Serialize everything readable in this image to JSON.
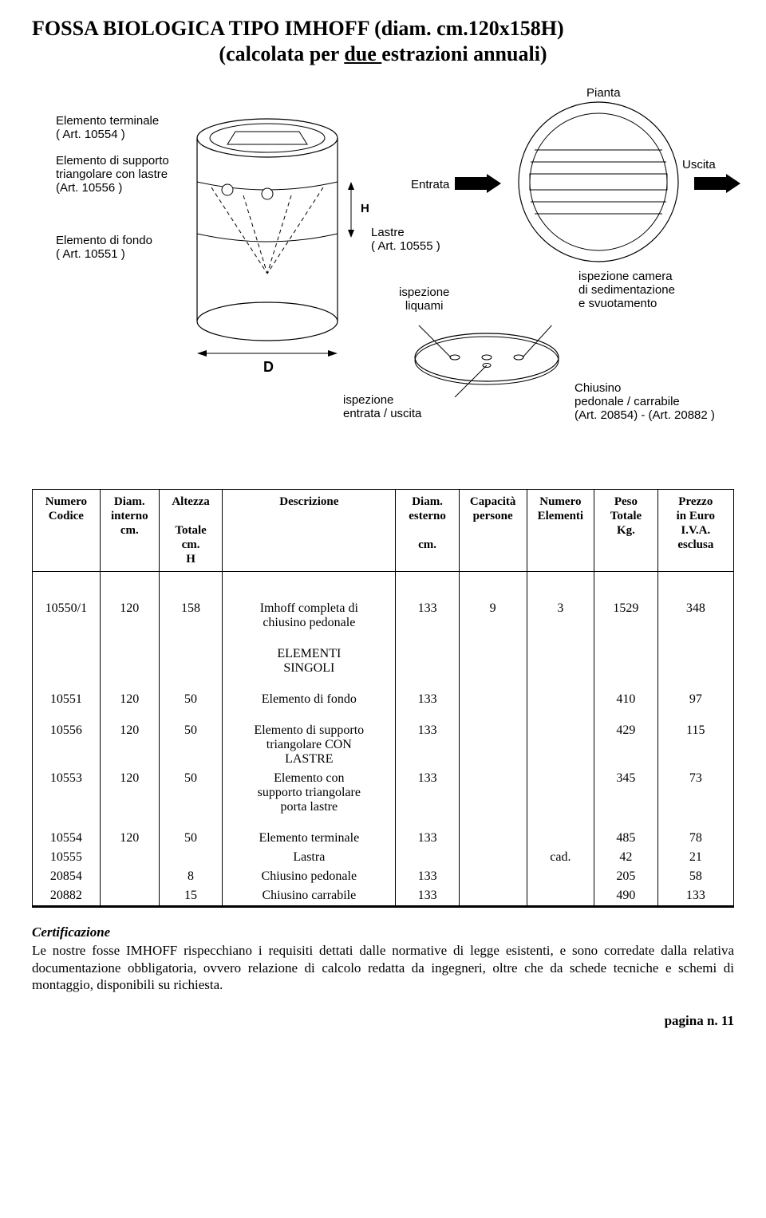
{
  "title": "FOSSA BIOLOGICA TIPO IMHOFF (diam. cm.120x158H)",
  "subtitle_pre": "(calcolata per ",
  "subtitle_underline": "due ",
  "subtitle_post": "estrazioni annuali)",
  "diagram": {
    "elem_terminale": "Elemento terminale\n( Art. 10554 )",
    "elem_supporto": "Elemento di supporto\ntriangolare con lastre\n(Art. 10556 )",
    "elem_fondo": "Elemento di fondo\n( Art. 10551 )",
    "lastre": "Lastre\n( Art. 10555 )",
    "pianta": "Pianta",
    "entrata": "Entrata",
    "uscita": "Uscita",
    "ispezione_camera": "ispezione camera\ndi sedimentazione\ne svuotamento",
    "ispezione_liquami": "ispezione\nliquami",
    "ispezione_entrata": "ispezione\nentrata / uscita",
    "chiusino": "Chiusino\npedonale / carrabile\n(Art. 20854) - (Art. 20882 )",
    "H": "H",
    "D": "D"
  },
  "table": {
    "headers": {
      "codice": "Numero\nCodice",
      "diam_int": "Diam.\ninterno\ncm.",
      "altezza": "Altezza\n\nTotale\ncm.\nH",
      "descrizione": "Descrizione",
      "diam_est": "Diam.\nesterno\n\ncm.",
      "capacita": "Capacità\npersone",
      "num_elem": "Numero\nElementi",
      "peso": "Peso\nTotale\nKg.",
      "prezzo": "Prezzo\nin Euro\nI.V.A.\nesclusa"
    },
    "rows": [
      {
        "codice": "10550/1",
        "diam_int": "120",
        "altezza": "158",
        "desc": "Imhoff completa di\nchiusino pedonale",
        "diam_est": "133",
        "cap": "9",
        "nelem": "3",
        "peso": "1529",
        "prezzo": "348",
        "gap": "big"
      },
      {
        "codice": "",
        "diam_int": "",
        "altezza": "",
        "desc": "ELEMENTI\nSINGOLI",
        "diam_est": "",
        "cap": "",
        "nelem": "",
        "peso": "",
        "prezzo": "",
        "gap": "before"
      },
      {
        "codice": "10551",
        "diam_int": "120",
        "altezza": "50",
        "desc": "Elemento di fondo",
        "diam_est": "133",
        "cap": "",
        "nelem": "",
        "peso": "410",
        "prezzo": "97",
        "gap": "before"
      },
      {
        "codice": "10556",
        "diam_int": "120",
        "altezza": "50",
        "desc": "Elemento di supporto\ntriangolare CON\nLASTRE",
        "diam_est": "133",
        "cap": "",
        "nelem": "",
        "peso": "429",
        "prezzo": "115",
        "gap": "before"
      },
      {
        "codice": "10553",
        "diam_int": "120",
        "altezza": "50",
        "desc": "Elemento con\nsupporto triangolare\nporta lastre",
        "diam_est": "133",
        "cap": "",
        "nelem": "",
        "peso": "345",
        "prezzo": "73"
      },
      {
        "codice": "10554",
        "diam_int": "120",
        "altezza": "50",
        "desc": "Elemento terminale",
        "diam_est": "133",
        "cap": "",
        "nelem": "",
        "peso": "485",
        "prezzo": "78",
        "gap": "before"
      },
      {
        "codice": "10555",
        "diam_int": "",
        "altezza": "",
        "desc": "Lastra",
        "diam_est": "",
        "cap": "",
        "nelem": "cad.",
        "peso": "42",
        "prezzo": "21"
      },
      {
        "codice": "20854",
        "diam_int": "",
        "altezza": "8",
        "desc": "Chiusino pedonale",
        "diam_est": "133",
        "cap": "",
        "nelem": "",
        "peso": "205",
        "prezzo": "58"
      },
      {
        "codice": "20882",
        "diam_int": "",
        "altezza": "15",
        "desc": "Chiusino carrabile",
        "diam_est": "133",
        "cap": "",
        "nelem": "",
        "peso": "490",
        "prezzo": "133"
      }
    ],
    "col_widths": [
      "80",
      "70",
      "75",
      "205",
      "75",
      "80",
      "80",
      "75",
      "90"
    ]
  },
  "cert_heading": "Certificazione",
  "cert_body": "Le nostre fosse IMHOFF rispecchiano i requisiti dettati dalle normative di legge esistenti, e sono corredate dalla relativa documentazione obbligatoria, ovvero relazione di calcolo redatta da ingegneri, oltre che da schede tecniche e schemi di montaggio, disponibili su richiesta.",
  "page_num": "pagina n. 11",
  "style": {
    "stroke": "#000000",
    "fill": "#ffffff",
    "dash": "4,4"
  }
}
